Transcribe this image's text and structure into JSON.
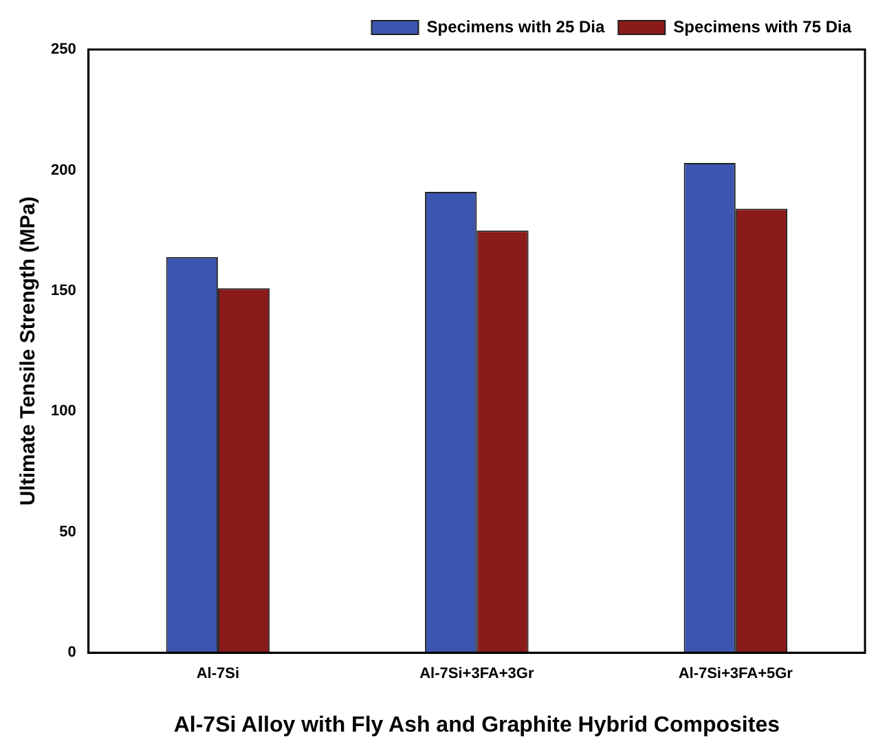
{
  "chart_data": {
    "type": "bar",
    "xlabel": "Al-7Si Alloy with Fly Ash and Graphite Hybrid Composites",
    "ylabel": "Ultimate Tensile Strength (MPa)",
    "categories": [
      "Al-7Si",
      "Al-7Si+3FA+3Gr",
      "Al-7Si+3FA+5Gr"
    ],
    "series": [
      {
        "name": "Specimens with 25 Dia",
        "color": "#3b55b0",
        "values": [
          164,
          191,
          203
        ]
      },
      {
        "name": "Specimens with 75 Dia",
        "color": "#8b1a1a",
        "values": [
          151,
          175,
          184
        ]
      }
    ],
    "ylim": [
      0,
      250
    ],
    "yticks": [
      0,
      50,
      100,
      150,
      200,
      250
    ],
    "grid": false,
    "legend": "top right"
  }
}
